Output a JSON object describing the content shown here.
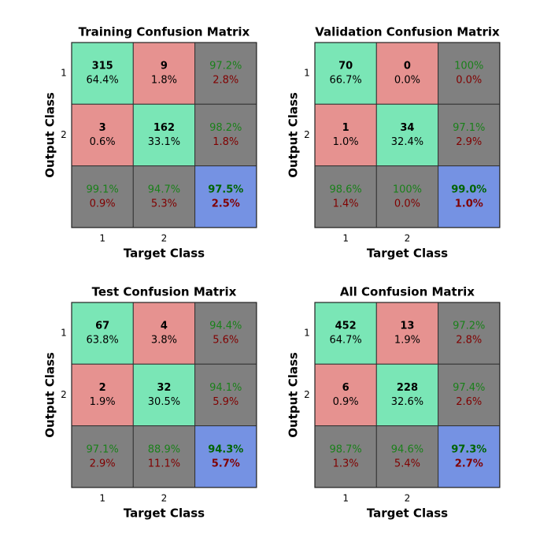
{
  "chart_data": [
    {
      "type": "heatmap",
      "title": "Training Confusion Matrix",
      "xlabel": "Target Class",
      "ylabel": "Output Class",
      "x_ticks": [
        "1",
        "2"
      ],
      "y_ticks": [
        "1",
        "2"
      ],
      "counts": [
        [
          315,
          9
        ],
        [
          3,
          162
        ]
      ],
      "percents": [
        [
          "64.4%",
          "1.8%"
        ],
        [
          "0.6%",
          "33.1%"
        ]
      ],
      "row_summary": [
        [
          "97.2%",
          "2.8%"
        ],
        [
          "98.2%",
          "1.8%"
        ]
      ],
      "col_summary": [
        [
          "99.1%",
          "0.9%"
        ],
        [
          "94.7%",
          "5.3%"
        ]
      ],
      "overall": [
        "97.5%",
        "2.5%"
      ]
    },
    {
      "type": "heatmap",
      "title": "Validation Confusion Matrix",
      "xlabel": "Target Class",
      "ylabel": "Output Class",
      "x_ticks": [
        "1",
        "2"
      ],
      "y_ticks": [
        "1",
        "2"
      ],
      "counts": [
        [
          70,
          0
        ],
        [
          1,
          34
        ]
      ],
      "percents": [
        [
          "66.7%",
          "0.0%"
        ],
        [
          "1.0%",
          "32.4%"
        ]
      ],
      "row_summary": [
        [
          "100%",
          "0.0%"
        ],
        [
          "97.1%",
          "2.9%"
        ]
      ],
      "col_summary": [
        [
          "98.6%",
          "1.4%"
        ],
        [
          "100%",
          "0.0%"
        ]
      ],
      "overall": [
        "99.0%",
        "1.0%"
      ]
    },
    {
      "type": "heatmap",
      "title": "Test Confusion Matrix",
      "xlabel": "Target Class",
      "ylabel": "Output Class",
      "x_ticks": [
        "1",
        "2"
      ],
      "y_ticks": [
        "1",
        "2"
      ],
      "counts": [
        [
          67,
          4
        ],
        [
          2,
          32
        ]
      ],
      "percents": [
        [
          "63.8%",
          "3.8%"
        ],
        [
          "1.9%",
          "30.5%"
        ]
      ],
      "row_summary": [
        [
          "94.4%",
          "5.6%"
        ],
        [
          "94.1%",
          "5.9%"
        ]
      ],
      "col_summary": [
        [
          "97.1%",
          "2.9%"
        ],
        [
          "88.9%",
          "11.1%"
        ]
      ],
      "overall": [
        "94.3%",
        "5.7%"
      ]
    },
    {
      "type": "heatmap",
      "title": "All Confusion Matrix",
      "xlabel": "Target Class",
      "ylabel": "Output Class",
      "x_ticks": [
        "1",
        "2"
      ],
      "y_ticks": [
        "1",
        "2"
      ],
      "counts": [
        [
          452,
          13
        ],
        [
          6,
          228
        ]
      ],
      "percents": [
        [
          "64.7%",
          "1.9%"
        ],
        [
          "0.9%",
          "32.6%"
        ]
      ],
      "row_summary": [
        [
          "97.2%",
          "2.8%"
        ],
        [
          "97.4%",
          "2.6%"
        ]
      ],
      "col_summary": [
        [
          "98.7%",
          "1.3%"
        ],
        [
          "94.6%",
          "5.4%"
        ]
      ],
      "overall": [
        "97.3%",
        "2.7%"
      ]
    }
  ],
  "colors": {
    "correct": "#7AE6B6",
    "incorrect": "#E69290",
    "summary": "#808080",
    "overall": "#7592E3",
    "good_text": "#1A801A",
    "bad_text": "#800000",
    "overall_good_text": "#006400",
    "overall_bad_text": "#800000"
  }
}
